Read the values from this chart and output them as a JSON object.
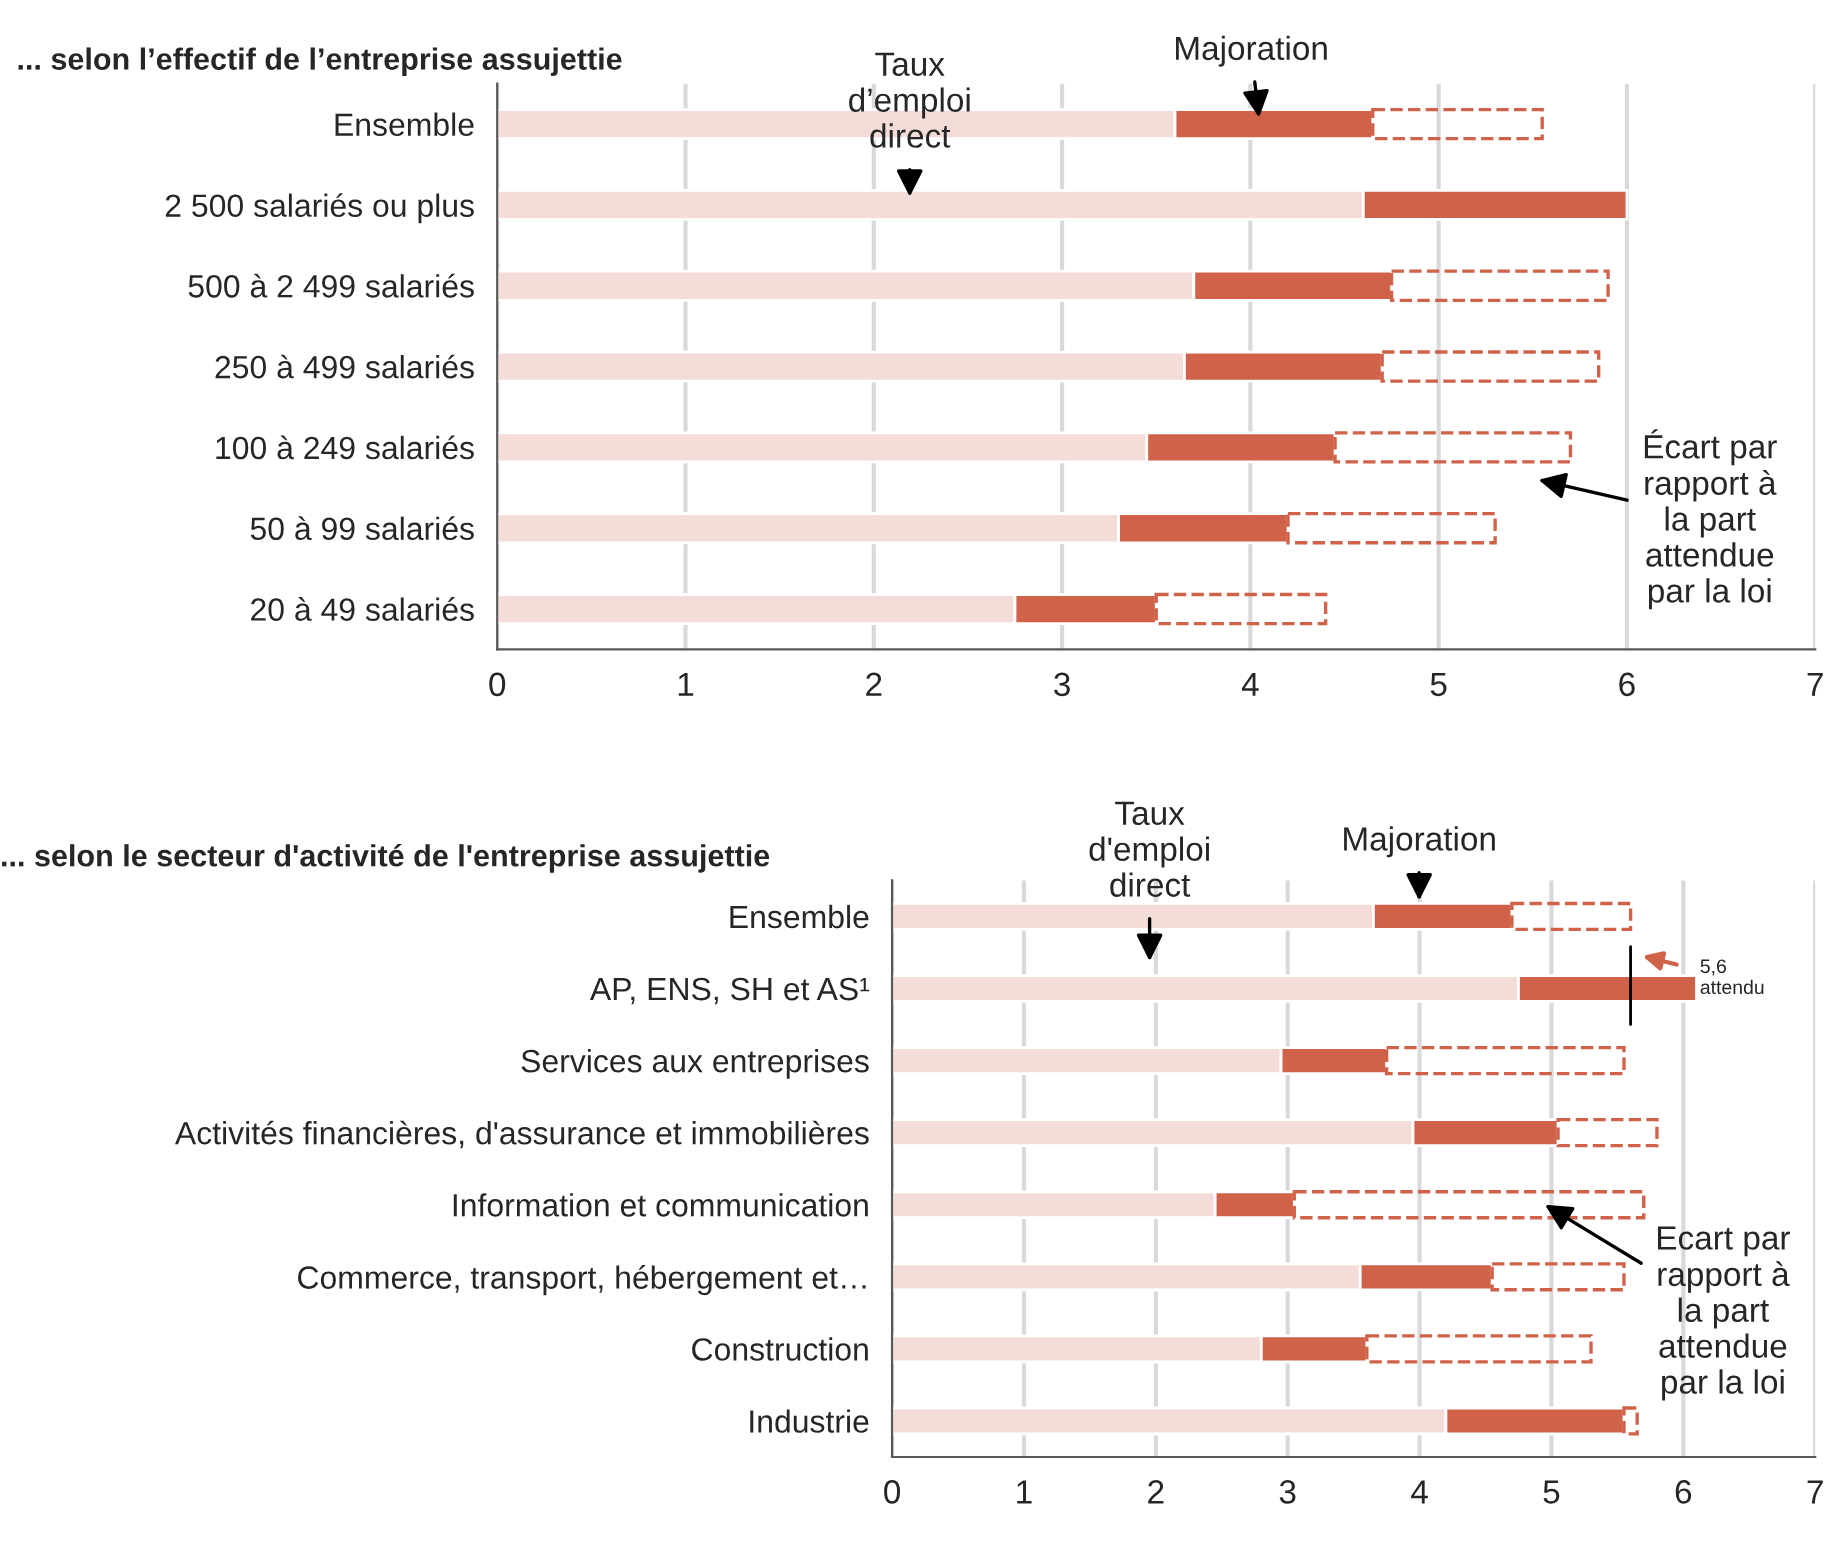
{
  "chart_data": [
    {
      "type": "bar",
      "orientation": "horizontal",
      "stacked": true,
      "title": "... selon l’effectif de l’entreprise assujettie",
      "categories": [
        "Ensemble",
        "2 500 salariés ou plus",
        "500 à 2 499 salariés",
        "250 à 499 salariés",
        "100 à 249 salariés",
        "50 à 99 salariés",
        "20 à 49 salariés"
      ],
      "series": [
        {
          "color": "#f4ddd8",
          "values": [
            3.6,
            4.6,
            3.7,
            3.65,
            3.45,
            3.3,
            2.75
          ]
        },
        {
          "color": "#d0624a",
          "values": [
            1.05,
            1.4,
            1.05,
            1.05,
            1.0,
            0.9,
            0.75
          ]
        },
        {
          "color": "#d0624a",
          "line_style": "dashed",
          "values": [
            0.9,
            null,
            1.15,
            1.15,
            1.25,
            1.1,
            0.9
          ]
        }
      ],
      "xlim": [
        0,
        7
      ],
      "xticks": [
        0,
        1,
        2,
        3,
        4,
        5,
        6,
        7
      ],
      "grid": "x",
      "annotations": [
        "Taux\nd’emploi\ndirect",
        "Majoration",
        "Écart par\nrapport à\nla part\nattendue\npar la loi"
      ]
    },
    {
      "type": "bar",
      "orientation": "horizontal",
      "stacked": true,
      "title": "... selon le secteur d'activité de l'entreprise assujettie",
      "categories": [
        "Ensemble",
        "AP, ENS, SH et AS¹",
        "Services aux entreprises",
        "Activités financières, d'assurance et immobilières",
        "Information et communication",
        "Commerce, transport, hébergement et…",
        "Construction",
        "Industrie"
      ],
      "series": [
        {
          "color": "#f4ddd8",
          "values": [
            3.65,
            4.75,
            2.95,
            3.95,
            2.45,
            3.55,
            2.8,
            4.2
          ]
        },
        {
          "color": "#d0624a",
          "values": [
            1.05,
            1.35,
            0.8,
            1.1,
            0.6,
            1.0,
            0.8,
            1.35
          ]
        },
        {
          "color": "#d0624a",
          "line_style": "dashed",
          "values": [
            0.9,
            null,
            1.8,
            0.75,
            2.65,
            1.0,
            1.7,
            0.1
          ]
        }
      ],
      "xlim": [
        0,
        7
      ],
      "xticks": [
        0,
        1,
        2,
        3,
        4,
        5,
        6,
        7
      ],
      "grid": "x",
      "annotations": [
        "Taux\nd'emploi\ndirect",
        "Majoration",
        {
          "text": "Ecart par\nrapport à\nla part\nattendue\npar la loi",
          "x": 4.95,
          "y": "Information et communication"
        }
      ],
      "ref_lines": [
        {
          "axis": "x",
          "value": 5.6,
          "label": "5,6\nattendu",
          "color": "#000000"
        }
      ]
    }
  ]
}
